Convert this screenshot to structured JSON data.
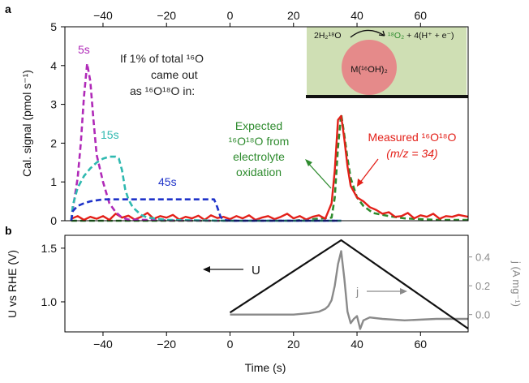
{
  "chart_data": [
    {
      "panel_label": "a",
      "type": "line",
      "ylabel": "Cal. signal (pmol s⁻¹)",
      "xlim": [
        -52,
        75
      ],
      "ylim": [
        0,
        5
      ],
      "xticks": [
        -40,
        -20,
        0,
        20,
        40,
        60
      ],
      "yticks": [
        0,
        1,
        2,
        3,
        4,
        5
      ],
      "x_axis_position": "top",
      "series": [
        {
          "name": "Measured ¹⁶O¹⁸O (m/z = 34)",
          "color": "#e32019",
          "style": "solid",
          "x": [
            -50,
            -48,
            -46,
            -44,
            -42,
            -40,
            -38,
            -36,
            -34,
            -32,
            -30,
            -28,
            -26,
            -24,
            -22,
            -20,
            -18,
            -16,
            -14,
            -12,
            -10,
            -8,
            -6,
            -4,
            -2,
            0,
            2,
            4,
            6,
            8,
            10,
            12,
            14,
            16,
            18,
            20,
            22,
            24,
            26,
            28,
            30,
            32,
            33,
            34,
            35,
            36,
            37,
            38,
            40,
            42,
            44,
            46,
            48,
            50,
            52,
            54,
            56,
            58,
            60,
            62,
            64,
            66,
            68,
            70,
            72,
            75
          ],
          "y": [
            0.05,
            0.12,
            0.02,
            0.1,
            0.05,
            0.12,
            0.02,
            0.18,
            0.08,
            0.13,
            0.03,
            0.1,
            0.2,
            0.05,
            0.12,
            0.08,
            0.15,
            0.03,
            0.1,
            0.06,
            0.13,
            0.02,
            0.14,
            0.07,
            0.1,
            0.04,
            0.12,
            0.06,
            0.14,
            0.02,
            0.08,
            0.12,
            0.04,
            0.1,
            0.18,
            0.06,
            0.12,
            0.03,
            0.1,
            0.14,
            0.05,
            0.45,
            1.3,
            2.6,
            2.7,
            2.1,
            1.4,
            0.9,
            0.6,
            0.5,
            0.35,
            0.28,
            0.18,
            0.22,
            0.1,
            0.12,
            0.2,
            0.06,
            0.14,
            0.1,
            0.18,
            0.05,
            0.12,
            0.1,
            0.15,
            0.1
          ]
        },
        {
          "name": "Expected ¹⁶O¹⁸O from electrolyte oxidation",
          "color": "#2e8b2e",
          "style": "dashed",
          "x": [
            -50,
            -20,
            0,
            20,
            32,
            33,
            34,
            35,
            36,
            37,
            38,
            40,
            42,
            45,
            50,
            55,
            60,
            65,
            75
          ],
          "y": [
            0,
            0,
            0,
            0,
            0.08,
            0.6,
            1.9,
            2.75,
            2.2,
            1.6,
            1.1,
            0.6,
            0.38,
            0.2,
            0.12,
            0.06,
            0.04,
            0.02,
            0.02
          ]
        },
        {
          "name": "5s",
          "color": "#b02ab8",
          "style": "dashed",
          "x": [
            -50,
            -49.5,
            -48,
            -47,
            -46,
            -45,
            -44,
            -43,
            -42,
            -40,
            -38,
            -36,
            -34,
            -32,
            -20,
            0,
            20,
            35
          ],
          "y": [
            0,
            0.3,
            1.1,
            2.0,
            3.2,
            4.05,
            3.6,
            2.6,
            1.7,
            1.0,
            0.45,
            0.22,
            0.08,
            0.03,
            0.01,
            0,
            0,
            0
          ]
        },
        {
          "name": "15s",
          "color": "#2fb9b0",
          "style": "dashed",
          "x": [
            -50,
            -49.5,
            -48,
            -46,
            -44,
            -42,
            -40,
            -38,
            -36,
            -35,
            -34,
            -33,
            -32,
            -31,
            -30,
            -28,
            -26,
            -20,
            0,
            35
          ],
          "y": [
            0,
            0.4,
            0.85,
            1.15,
            1.35,
            1.5,
            1.6,
            1.65,
            1.65,
            1.6,
            1.3,
            0.8,
            0.55,
            0.4,
            0.3,
            0.15,
            0.08,
            0.02,
            0,
            0
          ]
        },
        {
          "name": "45s",
          "color": "#1f33c9",
          "style": "dashed",
          "x": [
            -50,
            -49.5,
            -48,
            -46,
            -44,
            -40,
            -30,
            -20,
            -10,
            -5,
            -4,
            -3,
            -2,
            0,
            35
          ],
          "y": [
            0,
            0.25,
            0.38,
            0.45,
            0.5,
            0.55,
            0.55,
            0.55,
            0.55,
            0.55,
            0.35,
            0.1,
            0.02,
            0,
            0
          ]
        }
      ],
      "annotations": [
        {
          "text": "5s",
          "color": "#b02ab8"
        },
        {
          "text": "15s",
          "color": "#2fb9b0"
        },
        {
          "text": "45s",
          "color": "#1f33c9"
        },
        {
          "text": "If 1% of total ¹⁶O",
          "color": "#222222"
        },
        {
          "text": "came out",
          "color": "#222222"
        },
        {
          "text": "as ¹⁶O¹⁸O in:",
          "color": "#222222"
        },
        {
          "text": "Expected",
          "color": "#2e8b2e"
        },
        {
          "text": "¹⁶O¹⁸O from",
          "color": "#2e8b2e"
        },
        {
          "text": "electrolyte",
          "color": "#2e8b2e"
        },
        {
          "text": "oxidation",
          "color": "#2e8b2e"
        },
        {
          "text": "Measured ¹⁶O¹⁸O",
          "color": "#e32019"
        },
        {
          "text": "(m/z = 34)",
          "color": "#e32019"
        }
      ],
      "inset": {
        "background": "#cfdfb4",
        "particle_color": "#e58a8a",
        "particle_label": "M(¹⁶OH)₂",
        "reaction_left": "2H₂¹⁸O",
        "reaction_right_product": "¹⁸O₂",
        "reaction_right_rest": "+ 4(H⁺ + e⁻)"
      }
    },
    {
      "panel_label": "b",
      "type": "line",
      "xlabel": "Time (s)",
      "ylabel_left": "U vs RHE (V)",
      "ylabel_right": "j (A mg⁻¹)",
      "xlim": [
        -52,
        75
      ],
      "ylim_left": [
        0.72,
        1.62
      ],
      "ylim_right": [
        -0.12,
        0.55
      ],
      "xticks": [
        -40,
        -20,
        0,
        20,
        40,
        60
      ],
      "yticks_left": [
        1.0,
        1.5
      ],
      "yticks_right": [
        0.0,
        0.2,
        0.4
      ],
      "series": [
        {
          "name": "U",
          "axis": "left",
          "color": "#111111",
          "x": [
            0,
            35,
            75
          ],
          "y": [
            0.9,
            1.575,
            0.75
          ]
        },
        {
          "name": "j",
          "axis": "right",
          "color": "#8a8a8a",
          "x": [
            0,
            10,
            20,
            25,
            28,
            30,
            31,
            32,
            33,
            34,
            35,
            36,
            37,
            38,
            39,
            40,
            41,
            42,
            44,
            48,
            55,
            65,
            75
          ],
          "y": [
            0.0,
            0.0,
            0.0,
            0.01,
            0.02,
            0.04,
            0.06,
            0.1,
            0.2,
            0.35,
            0.44,
            0.25,
            0.02,
            -0.06,
            -0.03,
            -0.01,
            -0.1,
            -0.04,
            -0.02,
            -0.03,
            -0.04,
            -0.03,
            -0.03
          ]
        }
      ],
      "annotations": [
        {
          "text": "U",
          "color": "#111111"
        },
        {
          "text": "j",
          "color": "#8a8a8a"
        }
      ]
    }
  ]
}
